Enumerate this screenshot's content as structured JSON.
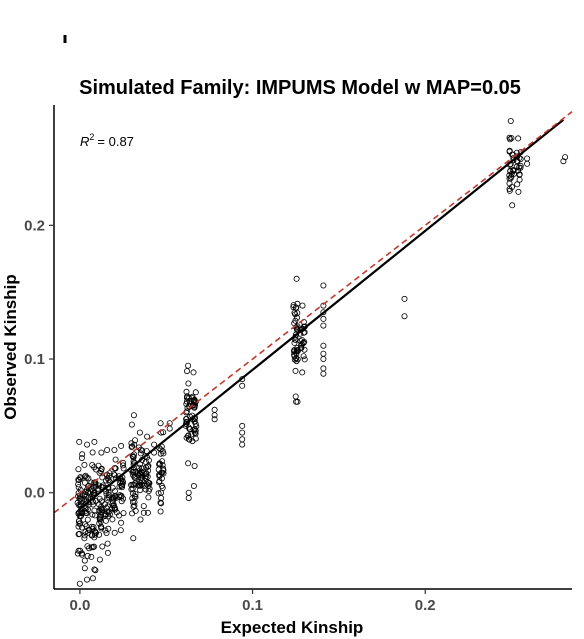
{
  "chart_data": {
    "type": "scatter",
    "title": "Simulated Family: IMPUMS Model w MAP=0.05",
    "xlabel": "Expected Kinship",
    "ylabel": "Observed Kinship",
    "xlim": [
      -0.015,
      0.285
    ],
    "ylim": [
      -0.072,
      0.29
    ],
    "x_ticks": [
      0.0,
      0.1,
      0.2
    ],
    "y_ticks": [
      0.0,
      0.1,
      0.2
    ],
    "x_tick_labels": [
      "0.0",
      "0.1",
      "0.2"
    ],
    "y_tick_labels": [
      "0.0",
      "0.1",
      "0.2"
    ],
    "grid": false,
    "annotation": {
      "r2_symbol": "R",
      "r2_superscript": "2",
      "r2_value": "= 0.87"
    },
    "fit_line": {
      "x": [
        0.0,
        0.28
      ],
      "y": [
        -0.012,
        0.279
      ],
      "color": "#000000",
      "style": "solid"
    },
    "identity_line": {
      "x": [
        -0.015,
        0.285
      ],
      "y": [
        -0.015,
        0.285
      ],
      "color": "#c0392b",
      "style": "dashed"
    },
    "clusters": [
      {
        "x": 0.0,
        "y_min": -0.068,
        "y_max": 0.038
      },
      {
        "x": 0.004,
        "y_min": -0.065,
        "y_max": 0.036
      },
      {
        "x": 0.008,
        "y_min": -0.064,
        "y_max": 0.038
      },
      {
        "x": 0.012,
        "y_min": -0.05,
        "y_max": 0.03
      },
      {
        "x": 0.016,
        "y_min": -0.045,
        "y_max": 0.032
      },
      {
        "x": 0.02,
        "y_min": -0.03,
        "y_max": 0.032
      },
      {
        "x": 0.024,
        "y_min": -0.028,
        "y_max": 0.035
      },
      {
        "x": 0.031,
        "y_min": -0.034,
        "y_max": 0.058
      },
      {
        "x": 0.035,
        "y_min": -0.02,
        "y_max": 0.045
      },
      {
        "x": 0.039,
        "y_min": -0.015,
        "y_max": 0.042
      },
      {
        "x": 0.047,
        "y_min": -0.014,
        "y_max": 0.052
      },
      {
        "x": 0.0625,
        "y_min": 0.022,
        "y_max": 0.095
      },
      {
        "x": 0.066,
        "y_min": 0.02,
        "y_max": 0.09
      },
      {
        "x": 0.125,
        "y_min": 0.068,
        "y_max": 0.16
      },
      {
        "x": 0.129,
        "y_min": 0.09,
        "y_max": 0.14
      },
      {
        "x": 0.25,
        "y_min": 0.215,
        "y_max": 0.278
      },
      {
        "x": 0.254,
        "y_min": 0.225,
        "y_max": 0.265
      }
    ],
    "points": [
      {
        "x": 0.047,
        "y": -0.008
      },
      {
        "x": 0.047,
        "y": -0.004
      },
      {
        "x": 0.047,
        "y": 0.0
      },
      {
        "x": 0.047,
        "y": 0.045
      },
      {
        "x": 0.052,
        "y": 0.048
      },
      {
        "x": 0.052,
        "y": 0.052
      },
      {
        "x": 0.043,
        "y": 0.03
      },
      {
        "x": 0.043,
        "y": 0.036
      },
      {
        "x": 0.037,
        "y": -0.01
      },
      {
        "x": 0.037,
        "y": -0.015
      },
      {
        "x": 0.078,
        "y": 0.055
      },
      {
        "x": 0.078,
        "y": 0.058
      },
      {
        "x": 0.078,
        "y": 0.062
      },
      {
        "x": 0.094,
        "y": 0.085
      },
      {
        "x": 0.094,
        "y": 0.08
      },
      {
        "x": 0.094,
        "y": 0.05
      },
      {
        "x": 0.094,
        "y": 0.045
      },
      {
        "x": 0.094,
        "y": 0.04
      },
      {
        "x": 0.094,
        "y": 0.036
      },
      {
        "x": 0.063,
        "y": -0.004
      },
      {
        "x": 0.063,
        "y": 0.0
      },
      {
        "x": 0.066,
        "y": 0.005
      },
      {
        "x": 0.141,
        "y": 0.155
      },
      {
        "x": 0.141,
        "y": 0.14
      },
      {
        "x": 0.141,
        "y": 0.135
      },
      {
        "x": 0.141,
        "y": 0.13
      },
      {
        "x": 0.141,
        "y": 0.125
      },
      {
        "x": 0.141,
        "y": 0.11
      },
      {
        "x": 0.141,
        "y": 0.104
      },
      {
        "x": 0.141,
        "y": 0.1
      },
      {
        "x": 0.141,
        "y": 0.093
      },
      {
        "x": 0.141,
        "y": 0.089
      },
      {
        "x": 0.125,
        "y": 0.072
      },
      {
        "x": 0.126,
        "y": 0.068
      },
      {
        "x": 0.188,
        "y": 0.145
      },
      {
        "x": 0.188,
        "y": 0.132
      },
      {
        "x": 0.281,
        "y": 0.251
      },
      {
        "x": 0.28,
        "y": 0.248
      },
      {
        "x": 0.259,
        "y": 0.25
      },
      {
        "x": 0.259,
        "y": 0.246
      }
    ]
  }
}
